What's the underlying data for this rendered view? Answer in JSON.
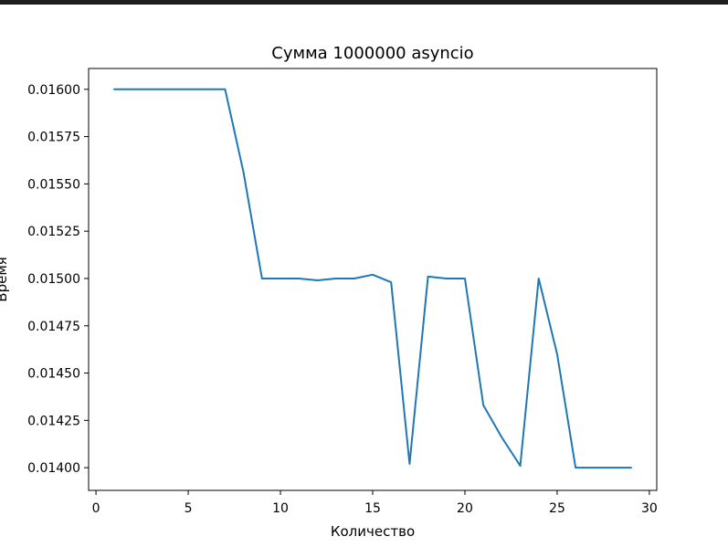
{
  "chart_data": {
    "type": "line",
    "title": "Сумма 1000000 asyncio",
    "xlabel": "Количество",
    "ylabel": "Время",
    "xlim": [
      -0.4,
      30.4
    ],
    "ylim": [
      0.01388,
      0.01611
    ],
    "xticks": [
      0,
      5,
      10,
      15,
      20,
      25,
      30
    ],
    "xtick_labels": [
      "0",
      "5",
      "10",
      "15",
      "20",
      "25",
      "30"
    ],
    "yticks": [
      0.014,
      0.01425,
      0.0145,
      0.01475,
      0.015,
      0.01525,
      0.0155,
      0.01575,
      0.016
    ],
    "ytick_labels": [
      "0.01400",
      "0.01425",
      "0.01450",
      "0.01475",
      "0.01500",
      "0.01525",
      "0.01550",
      "0.01575",
      "0.01600"
    ],
    "grid": false,
    "series": [
      {
        "color": "#1f77b4",
        "x": [
          1,
          2,
          3,
          4,
          5,
          6,
          7,
          8,
          9,
          10,
          11,
          12,
          13,
          14,
          15,
          16,
          17,
          18,
          19,
          20,
          21,
          22,
          23,
          24,
          25,
          26,
          27,
          28,
          29
        ],
        "y": [
          0.016,
          0.016,
          0.016,
          0.016,
          0.016,
          0.016,
          0.016,
          0.01556,
          0.015,
          0.015,
          0.015,
          0.01499,
          0.015,
          0.015,
          0.01502,
          0.01498,
          0.01402,
          0.01501,
          0.015,
          0.015,
          0.01433,
          0.01416,
          0.01401,
          0.015,
          0.0146,
          0.014,
          0.014,
          0.014,
          0.014
        ]
      }
    ]
  }
}
